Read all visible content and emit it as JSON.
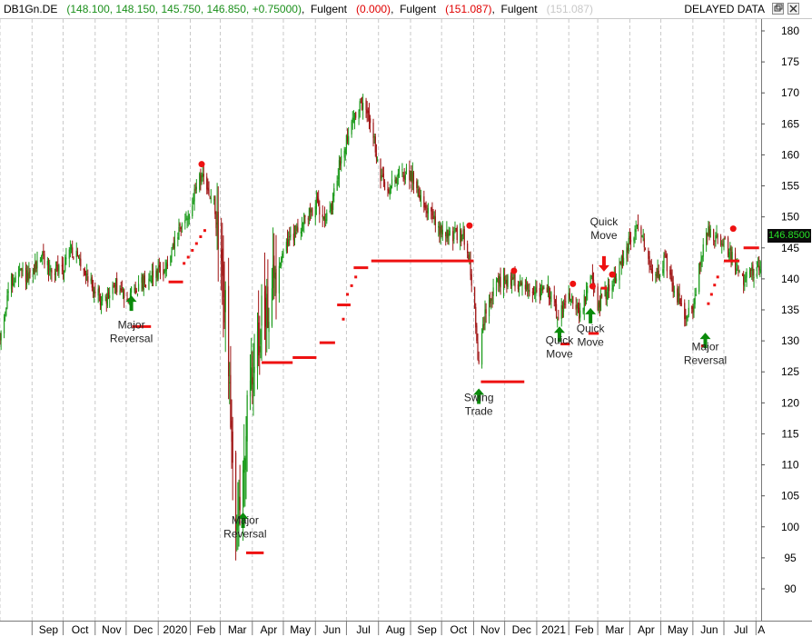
{
  "header": {
    "symbol": "DB1Gn.DE",
    "ohlc": "(148.100, 148.150, 145.750, 146.850, +0.75000)",
    "ind1_name": "Fulgent",
    "ind1_value": "(0.000)",
    "ind2_name": "Fulgent",
    "ind2_value": "(151.087)",
    "ind3_name": "Fulgent",
    "ind3_value": "(151.087)",
    "status": "DELAYED DATA",
    "colors": {
      "symbol": "#000000",
      "ohlc": "#1a8f1a",
      "ind1": "#e00000",
      "ind2": "#e00000",
      "ind3": "#c8c8c8"
    }
  },
  "window_buttons": {
    "restore_icon": "restore-icon",
    "close_icon": "close-icon"
  },
  "price_tag": "146.8500",
  "chart_data": {
    "type": "candlestick",
    "y_ticks": [
      90,
      95,
      100,
      105,
      110,
      115,
      120,
      125,
      130,
      135,
      140,
      145,
      150,
      155,
      160,
      165,
      170,
      175,
      180
    ],
    "ylim": [
      85.5,
      182.5
    ],
    "y_axis_side": "right",
    "grid": "vertical dashed at month starts",
    "x_months": [
      "Sep",
      "Oct",
      "Nov",
      "Dec",
      "2020",
      "Feb",
      "Mar",
      "Apr",
      "May",
      "Jun",
      "Jul",
      "Aug",
      "Sep",
      "Oct",
      "Nov",
      "Dec",
      "2021",
      "Feb",
      "Mar",
      "Apr",
      "May",
      "Jun",
      "Jul",
      "A"
    ],
    "x_start": "2019-08-01",
    "x_end": "2021-08-06",
    "colors": {
      "up": "#1a9a1a",
      "down": "#a01515",
      "signal": "#ee1111",
      "arrow": "#0a8a0a"
    },
    "price_path": [
      [
        "2019-08-01",
        130
      ],
      [
        "2019-08-10",
        139
      ],
      [
        "2019-08-20",
        141
      ],
      [
        "2019-08-30",
        140
      ],
      [
        "2019-09-10",
        144
      ],
      [
        "2019-09-20",
        141
      ],
      [
        "2019-10-01",
        142
      ],
      [
        "2019-10-08",
        145
      ],
      [
        "2019-10-20",
        142
      ],
      [
        "2019-11-01",
        138
      ],
      [
        "2019-11-10",
        136
      ],
      [
        "2019-11-20",
        139
      ],
      [
        "2019-12-01",
        137
      ],
      [
        "2019-12-15",
        139
      ],
      [
        "2019-12-28",
        141
      ],
      [
        "2020-01-10",
        142
      ],
      [
        "2020-01-20",
        147
      ],
      [
        "2020-02-01",
        151
      ],
      [
        "2020-02-10",
        157
      ],
      [
        "2020-02-18",
        154
      ],
      [
        "2020-02-24",
        152
      ],
      [
        "2020-03-01",
        142
      ],
      [
        "2020-03-06",
        135
      ],
      [
        "2020-03-12",
        112
      ],
      [
        "2020-03-18",
        99
      ],
      [
        "2020-03-25",
        114
      ],
      [
        "2020-04-01",
        124
      ],
      [
        "2020-04-08",
        132
      ],
      [
        "2020-04-20",
        138
      ],
      [
        "2020-05-01",
        145
      ],
      [
        "2020-05-15",
        148
      ],
      [
        "2020-06-01",
        152
      ],
      [
        "2020-06-15",
        150
      ],
      [
        "2020-06-25",
        159
      ],
      [
        "2020-07-05",
        165
      ],
      [
        "2020-07-15",
        168
      ],
      [
        "2020-07-25",
        166
      ],
      [
        "2020-08-01",
        157
      ],
      [
        "2020-08-10",
        154
      ],
      [
        "2020-08-20",
        157
      ],
      [
        "2020-09-01",
        157
      ],
      [
        "2020-09-15",
        152
      ],
      [
        "2020-09-28",
        148
      ],
      [
        "2020-10-10",
        147
      ],
      [
        "2020-10-22",
        147
      ],
      [
        "2020-10-28",
        143
      ],
      [
        "2020-11-02",
        135
      ],
      [
        "2020-11-05",
        126
      ],
      [
        "2020-11-12",
        134
      ],
      [
        "2020-11-22",
        139
      ],
      [
        "2020-12-05",
        140
      ],
      [
        "2020-12-20",
        139
      ],
      [
        "2021-01-01",
        138
      ],
      [
        "2021-01-12",
        138
      ],
      [
        "2021-01-22",
        134
      ],
      [
        "2021-02-01",
        138
      ],
      [
        "2021-02-12",
        134
      ],
      [
        "2021-02-22",
        140
      ],
      [
        "2021-03-01",
        136
      ],
      [
        "2021-03-10",
        138
      ],
      [
        "2021-03-20",
        141
      ],
      [
        "2021-04-01",
        146
      ],
      [
        "2021-04-08",
        148
      ],
      [
        "2021-04-15",
        146
      ],
      [
        "2021-04-25",
        140
      ],
      [
        "2021-05-05",
        143
      ],
      [
        "2021-05-15",
        138
      ],
      [
        "2021-05-25",
        134
      ],
      [
        "2021-06-01",
        135
      ],
      [
        "2021-06-08",
        143
      ],
      [
        "2021-06-15",
        148
      ],
      [
        "2021-06-22",
        146
      ],
      [
        "2021-07-01",
        146
      ],
      [
        "2021-07-10",
        143
      ],
      [
        "2021-07-20",
        140
      ],
      [
        "2021-08-06",
        142
      ]
    ],
    "signal_levels": [
      {
        "from": "2019-12-07",
        "to": "2019-12-25",
        "value": 132.3
      },
      {
        "from": "2020-01-11",
        "to": "2020-01-25",
        "value": 139.5
      },
      {
        "from": "2020-03-26",
        "to": "2020-04-12",
        "value": 95.8
      },
      {
        "from": "2020-04-10",
        "to": "2020-05-10",
        "value": 126.5
      },
      {
        "from": "2020-05-10",
        "to": "2020-06-02",
        "value": 127.3
      },
      {
        "from": "2020-06-05",
        "to": "2020-06-20",
        "value": 129.7
      },
      {
        "from": "2020-06-22",
        "to": "2020-07-05",
        "value": 135.8
      },
      {
        "from": "2020-07-08",
        "to": "2020-07-22",
        "value": 141.8
      },
      {
        "from": "2020-07-25",
        "to": "2020-11-01",
        "value": 142.9
      },
      {
        "from": "2020-11-08",
        "to": "2020-12-20",
        "value": 123.4
      },
      {
        "from": "2021-01-24",
        "to": "2021-02-02",
        "value": 129.5
      },
      {
        "from": "2021-02-20",
        "to": "2021-03-02",
        "value": 131.2
      },
      {
        "from": "2021-03-04",
        "to": "2021-03-10",
        "value": 138.5
      },
      {
        "from": "2021-06-09",
        "to": "2021-06-14",
        "value": 129.2
      },
      {
        "from": "2021-07-01",
        "to": "2021-07-16",
        "value": 142.9
      },
      {
        "from": "2021-07-20",
        "to": "2021-08-04",
        "value": 145.0
      }
    ],
    "signal_dots": [
      [
        "2020-02-12",
        158.5
      ],
      [
        "2020-10-28",
        148.6
      ],
      [
        "2020-12-10",
        141.3
      ],
      [
        "2021-02-05",
        139.2
      ],
      [
        "2021-02-24",
        138.8
      ],
      [
        "2021-03-15",
        140.7
      ],
      [
        "2021-07-10",
        148.1
      ]
    ],
    "trail_dots": [
      [
        "2020-01-26",
        142.5
      ],
      [
        "2020-01-30",
        143.5
      ],
      [
        "2020-02-03",
        144.6
      ],
      [
        "2020-02-07",
        145.7
      ],
      [
        "2020-02-11",
        146.8
      ],
      [
        "2020-02-15",
        147.8
      ],
      [
        "2020-06-28",
        133.5
      ],
      [
        "2020-07-02",
        137.5
      ],
      [
        "2020-07-06",
        138.9
      ],
      [
        "2020-07-10",
        140.3
      ],
      [
        "2021-06-16",
        136.0
      ],
      [
        "2021-06-19",
        137.5
      ],
      [
        "2021-06-22",
        139.0
      ],
      [
        "2021-06-25",
        140.3
      ]
    ],
    "arrows": [
      {
        "date": "2019-12-06",
        "value": 136,
        "dir": "up"
      },
      {
        "date": "2020-03-23",
        "value": 101,
        "dir": "up"
      },
      {
        "date": "2020-11-06",
        "value": 121,
        "dir": "up"
      },
      {
        "date": "2021-01-23",
        "value": 131,
        "dir": "up"
      },
      {
        "date": "2021-02-22",
        "value": 134,
        "dir": "up"
      },
      {
        "date": "2021-03-07",
        "value": 142.5,
        "dir": "down"
      },
      {
        "date": "2021-06-13",
        "value": 130,
        "dir": "up"
      }
    ],
    "annotations": [
      {
        "date": "2019-12-06",
        "value": 132.0,
        "lines": [
          "Major",
          "Reversal"
        ]
      },
      {
        "date": "2020-03-25",
        "value": 100.5,
        "lines": [
          "Major",
          "Reversal"
        ]
      },
      {
        "date": "2020-11-06",
        "value": 120.3,
        "lines": [
          "Swing",
          "Trade"
        ]
      },
      {
        "date": "2021-01-23",
        "value": 129.5,
        "lines": [
          "Quick",
          "Move"
        ]
      },
      {
        "date": "2021-02-22",
        "value": 131.4,
        "lines": [
          "Quick",
          "Move"
        ]
      },
      {
        "date": "2021-03-07",
        "value": 148.6,
        "lines": [
          "Quick",
          "Move"
        ]
      },
      {
        "date": "2021-06-13",
        "value": 128.5,
        "lines": [
          "Major",
          "Reversal"
        ]
      }
    ]
  }
}
